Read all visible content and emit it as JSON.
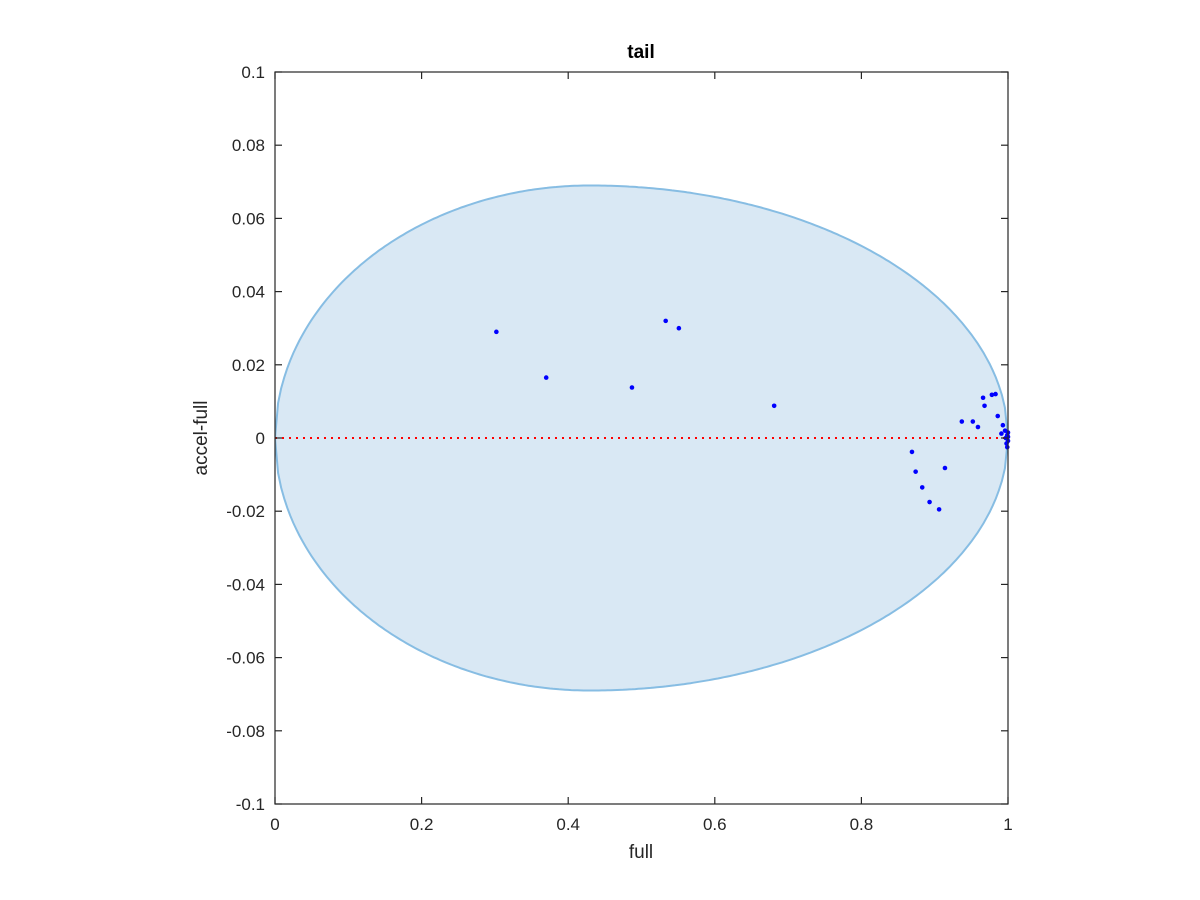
{
  "chart_data": {
    "type": "scatter",
    "title": "tail",
    "xlabel": "full",
    "ylabel": "accel-full",
    "xlim": [
      0,
      1
    ],
    "ylim": [
      -0.1,
      0.1
    ],
    "xticks": [
      "0",
      "0.2",
      "0.4",
      "0.6",
      "0.8",
      "1"
    ],
    "yticks": [
      "-0.1",
      "-0.08",
      "-0.06",
      "-0.04",
      "-0.02",
      "0",
      "0.02",
      "0.04",
      "0.06",
      "0.08",
      "0.1"
    ],
    "grid": false,
    "legend": "none",
    "reference_line": {
      "y": 0,
      "style": "dotted",
      "color": "#ff0000"
    },
    "region": {
      "shape": "ellipse",
      "x_range": [
        0,
        1
      ],
      "y_range": [
        -0.069,
        0.069
      ],
      "peak_x": 0.43,
      "fill": "#d9e8f4",
      "stroke": "#87bde3"
    },
    "series": [
      {
        "color": "#0000ff",
        "points": [
          [
            0.302,
            0.029
          ],
          [
            0.37,
            0.0165
          ],
          [
            0.487,
            0.0138
          ],
          [
            0.533,
            0.032
          ],
          [
            0.551,
            0.03
          ],
          [
            0.681,
            0.0088
          ],
          [
            0.869,
            -0.0038
          ],
          [
            0.874,
            -0.0092
          ],
          [
            0.883,
            -0.0135
          ],
          [
            0.893,
            -0.0175
          ],
          [
            0.906,
            -0.0195
          ],
          [
            0.914,
            -0.0082
          ],
          [
            0.937,
            0.0045
          ],
          [
            0.952,
            0.0045
          ],
          [
            0.959,
            0.003
          ],
          [
            0.966,
            0.011
          ],
          [
            0.968,
            0.0088
          ],
          [
            0.978,
            0.0118
          ],
          [
            0.983,
            0.012
          ],
          [
            0.986,
            0.006
          ],
          [
            0.991,
            0.0012
          ],
          [
            0.993,
            0.0035
          ],
          [
            0.996,
            0.002
          ],
          [
            0.997,
            0.0
          ],
          [
            0.998,
            -0.0015
          ],
          [
            0.999,
            0.0008
          ],
          [
            0.999,
            -0.0025
          ],
          [
            1.0,
            0.0015
          ],
          [
            1.0,
            -0.0008
          ],
          [
            1.0,
            0.0003
          ]
        ]
      }
    ]
  }
}
